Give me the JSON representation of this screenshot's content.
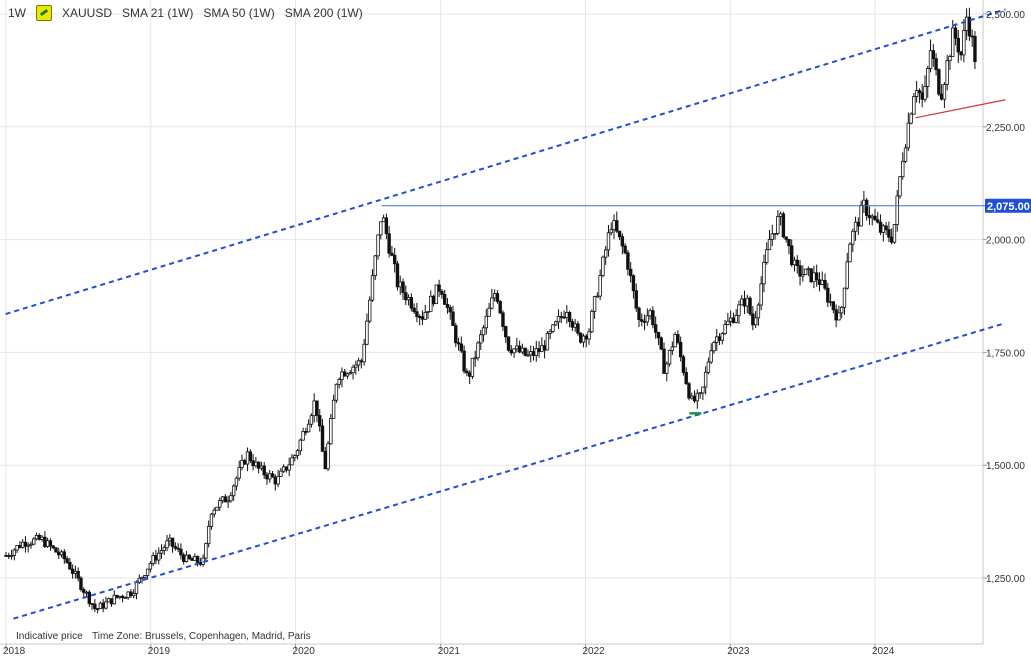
{
  "header": {
    "timeframe": "1W",
    "symbol": "XAUUSD",
    "indicators": [
      "SMA 21 (1W)",
      "SMA 50 (1W)",
      "SMA 200 (1W)"
    ]
  },
  "footer": {
    "price_note": "Indicative price",
    "timezone": "Time Zone: Brussels, Copenhagen, Madrid, Paris"
  },
  "colors": {
    "candle": "#111111",
    "channel": "#1f4fd6",
    "resistance": "#3a6fd8",
    "support_short": "#e03030",
    "marker_low": "#1a9a3a",
    "grid": "#e6e6e6",
    "price_tag_bg": "#1f4fd6"
  },
  "chart_data": {
    "type": "candlestick",
    "title": "",
    "xlabel": "",
    "ylabel": "",
    "ylim": [
      1120,
      2515
    ],
    "xlim": [
      "2018-01",
      "2024-11"
    ],
    "y_ticks": [
      "1,250.00",
      "1,500.00",
      "1,750.00",
      "2,000.00",
      "2,250.00",
      "2,500.00"
    ],
    "y_tick_values": [
      1250,
      1500,
      1750,
      2000,
      2250,
      2500
    ],
    "x_ticks": [
      "2018",
      "2019",
      "2020",
      "2021",
      "2022",
      "2023",
      "2024"
    ],
    "x_tick_values": [
      "2018-01-01",
      "2019-01-01",
      "2020-01-01",
      "2021-01-01",
      "2022-01-01",
      "2023-01-01",
      "2024-01-01"
    ],
    "price_level_label": "2,075.00",
    "price_level_value": 2075,
    "grid": true,
    "close_path": [
      [
        "2018-01-01",
        1300
      ],
      [
        "2018-02-15",
        1330
      ],
      [
        "2018-04-01",
        1335
      ],
      [
        "2018-06-01",
        1290
      ],
      [
        "2018-08-15",
        1180
      ],
      [
        "2018-10-01",
        1205
      ],
      [
        "2018-11-15",
        1220
      ],
      [
        "2019-01-01",
        1285
      ],
      [
        "2019-02-15",
        1330
      ],
      [
        "2019-04-01",
        1290
      ],
      [
        "2019-05-15",
        1285
      ],
      [
        "2019-06-01",
        1400
      ],
      [
        "2019-07-15",
        1430
      ],
      [
        "2019-09-01",
        1525
      ],
      [
        "2019-10-01",
        1490
      ],
      [
        "2019-11-15",
        1465
      ],
      [
        "2020-01-01",
        1525
      ],
      [
        "2020-02-20",
        1645
      ],
      [
        "2020-03-15",
        1490
      ],
      [
        "2020-04-15",
        1700
      ],
      [
        "2020-06-15",
        1730
      ],
      [
        "2020-08-05",
        2060
      ],
      [
        "2020-09-15",
        1900
      ],
      [
        "2020-11-15",
        1830
      ],
      [
        "2021-01-01",
        1900
      ],
      [
        "2021-03-10",
        1690
      ],
      [
        "2021-05-20",
        1890
      ],
      [
        "2021-06-20",
        1765
      ],
      [
        "2021-08-10",
        1740
      ],
      [
        "2021-09-15",
        1760
      ],
      [
        "2021-11-15",
        1850
      ],
      [
        "2021-12-15",
        1780
      ],
      [
        "2022-01-10",
        1800
      ],
      [
        "2022-03-08",
        2040
      ],
      [
        "2022-04-15",
        1960
      ],
      [
        "2022-05-15",
        1820
      ],
      [
        "2022-06-15",
        1840
      ],
      [
        "2022-07-20",
        1710
      ],
      [
        "2022-08-15",
        1790
      ],
      [
        "2022-09-25",
        1640
      ],
      [
        "2022-10-20",
        1650
      ],
      [
        "2022-11-15",
        1770
      ],
      [
        "2022-12-31",
        1820
      ],
      [
        "2023-02-10",
        1870
      ],
      [
        "2023-02-28",
        1810
      ],
      [
        "2023-04-10",
        2000
      ],
      [
        "2023-05-05",
        2050
      ],
      [
        "2023-06-15",
        1930
      ],
      [
        "2023-08-10",
        1915
      ],
      [
        "2023-10-05",
        1820
      ],
      [
        "2023-10-27",
        1990
      ],
      [
        "2023-12-04",
        2075
      ],
      [
        "2024-01-15",
        2020
      ],
      [
        "2024-02-15",
        2005
      ],
      [
        "2024-03-10",
        2180
      ],
      [
        "2024-04-12",
        2350
      ],
      [
        "2024-05-02",
        2300
      ],
      [
        "2024-05-20",
        2420
      ],
      [
        "2024-06-15",
        2320
      ],
      [
        "2024-07-17",
        2460
      ],
      [
        "2024-08-05",
        2410
      ],
      [
        "2024-08-20",
        2500
      ],
      [
        "2024-09-10",
        2400
      ]
    ],
    "channel_upper": [
      [
        "2017-12-31",
        1835
      ],
      [
        "2024-11-25",
        2510
      ]
    ],
    "channel_lower": [
      [
        "2018-01-20",
        1160
      ],
      [
        "2024-11-25",
        1815
      ]
    ],
    "resistance_line": [
      [
        "2020-08-05",
        2075
      ],
      [
        "2024-11-25",
        2075
      ]
    ],
    "support_short": [
      [
        "2024-04-12",
        2270
      ],
      [
        "2024-11-25",
        2310
      ]
    ],
    "marker_low": [
      [
        "2022-09-20",
        1615
      ],
      [
        "2022-10-20",
        1615
      ]
    ]
  }
}
